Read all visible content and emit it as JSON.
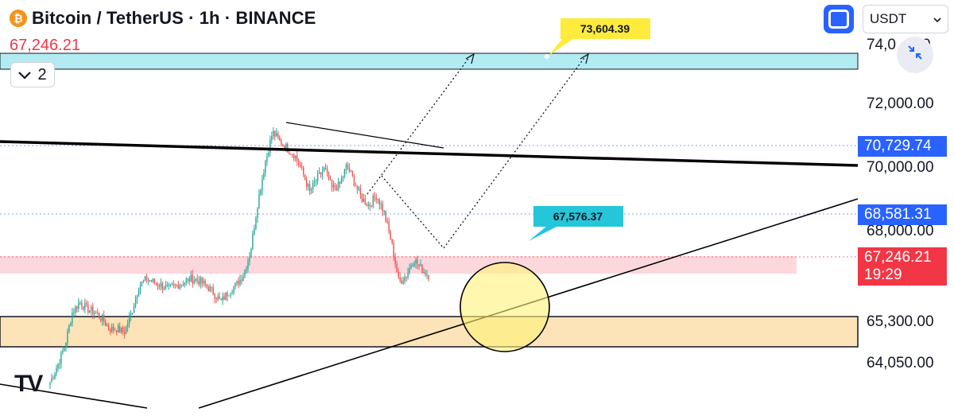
{
  "header": {
    "coin_symbol": "₿",
    "title": "Bitcoin / TetherUS · 1h · BINANCE",
    "last_price": "67,246.21"
  },
  "indicators_toggle": {
    "label": "2",
    "icon": "chevron-down-icon"
  },
  "toolbar": {
    "currency": "USDT",
    "currency_icon": "chevron-down-icon",
    "fullscreen_icon": "screenshot-icon",
    "zoom_icon": "collapse-arrows-icon"
  },
  "price_axis": {
    "labels": [
      "74,0",
      "0",
      "72,000.00",
      "70,000.00",
      "68,000.00",
      "65,300.00",
      "64,050.00"
    ],
    "tags": [
      {
        "text": "70,729.74",
        "color": "#2962ff"
      },
      {
        "text": "68,581.31",
        "color": "#2962ff"
      },
      {
        "text": "67,246.21",
        "color": "#f23645"
      },
      {
        "text": "19:29",
        "color": "#f23645"
      }
    ]
  },
  "annotations": {
    "target_label": "73,604.39",
    "target_color": "#ffeb3b",
    "mid_label": "67,576.37",
    "mid_color": "#26c6da"
  },
  "chart_data": {
    "type": "candlestick",
    "symbol": "BTCUSDT",
    "interval": "1h",
    "y_range": [
      63400,
      74600
    ],
    "close_path": [
      64100,
      64600,
      65200,
      66200,
      66500,
      66300,
      66200,
      66000,
      65700,
      65700,
      65600,
      66200,
      67000,
      67200,
      67100,
      67000,
      66900,
      67000,
      67100,
      67200,
      67150,
      67000,
      66800,
      66500,
      66800,
      67000,
      67300,
      68000,
      69500,
      70700,
      71600,
      71300,
      71100,
      70900,
      70400,
      69800,
      70200,
      70500,
      69900,
      70000,
      70600,
      70100,
      69600,
      69400,
      69700,
      69200,
      68300,
      67100,
      67300,
      67800,
      67500,
      67300
    ],
    "levels": [
      {
        "name": "resistance-zone",
        "from": 73200,
        "to": 73800,
        "color": "#b2ebf2"
      },
      {
        "name": "current-zone",
        "from": 66800,
        "to": 67350,
        "color": "#ffcdd2"
      },
      {
        "name": "support-zone",
        "from": 64500,
        "to": 65300,
        "color": "#ffe0b2"
      }
    ],
    "dotted_levels": [
      70729.74,
      68581.31,
      67246.21
    ],
    "brand": "TV"
  },
  "colors": {
    "up": "#26a69a",
    "down": "#ef5350"
  }
}
